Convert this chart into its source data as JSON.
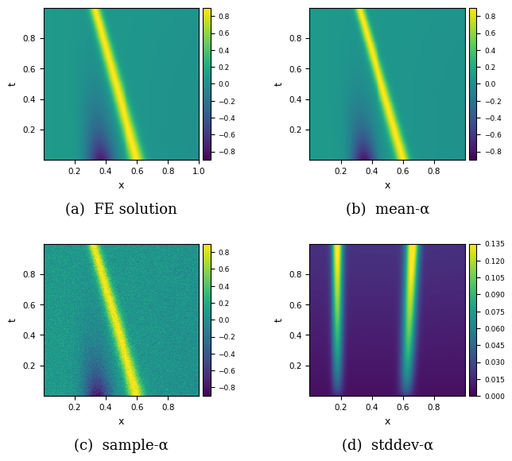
{
  "title_a": "(a)  FE solution",
  "title_b": "(b)  mean-α",
  "title_c": "(c)  sample-α",
  "title_d": "(d)  stddev-α",
  "xlabel": "x",
  "ylabel": "t",
  "xlim": [
    0.0,
    1.0
  ],
  "ylim": [
    0.0,
    1.0
  ],
  "cmap_abc": "viridis",
  "cmap_d": "viridis",
  "vmin_abc": -0.9,
  "vmax_abc": 0.9,
  "vmin_d": 0.0,
  "vmax_d": 0.135,
  "colorbar_ticks_abc": [
    0.8,
    0.6,
    0.4,
    0.2,
    0.0,
    -0.2,
    -0.4,
    -0.6,
    -0.8
  ],
  "colorbar_ticks_d": [
    0.135,
    0.12,
    0.105,
    0.09,
    0.075,
    0.06,
    0.045,
    0.03,
    0.015,
    0.0
  ],
  "nx": 200,
  "nt": 200,
  "noise_seed": 42,
  "background_color": "#ffffff",
  "title_fontsize": 13
}
